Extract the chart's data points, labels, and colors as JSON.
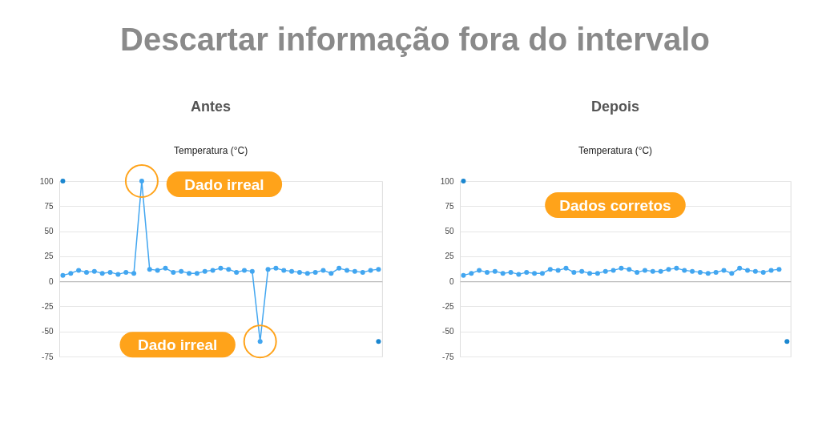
{
  "chart_data": [
    {
      "type": "other",
      "title": "Descartar informação fora do intervalo"
    },
    {
      "type": "line",
      "title": "Antes",
      "subtitle": "Temperatura (°C)",
      "categories": [
        null,
        null,
        null,
        null,
        null,
        null,
        null,
        null,
        null,
        null,
        null,
        null,
        null,
        null,
        null,
        null,
        null,
        null,
        null,
        null,
        null,
        null,
        null,
        null,
        null,
        null,
        null,
        null,
        null,
        null,
        null,
        null,
        null,
        null,
        null,
        null,
        null,
        null,
        null,
        null,
        null
      ],
      "series": [
        {
          "color": "#42a6f0",
          "values": [
            6,
            8,
            11,
            9,
            10,
            8,
            9,
            7,
            9,
            8,
            100,
            12,
            11,
            13,
            9,
            10,
            8,
            8,
            10,
            11,
            13,
            12,
            9,
            11,
            10,
            -60,
            12,
            13,
            11,
            10,
            9,
            8,
            9,
            11,
            8,
            13,
            11,
            10,
            9,
            11,
            12
          ]
        },
        {
          "type": "scatter",
          "color": "#1b87d0",
          "values": [
            100,
            null,
            null,
            null,
            null,
            null,
            null,
            null,
            null,
            null,
            null,
            null,
            null,
            null,
            null,
            null,
            null,
            null,
            null,
            null,
            null,
            null,
            null,
            null,
            null,
            null,
            null,
            null,
            null,
            null,
            null,
            null,
            null,
            null,
            null,
            null,
            null,
            null,
            null,
            null,
            -60
          ]
        }
      ],
      "ylim": [
        -75,
        100
      ],
      "yticks": [
        100,
        75,
        50,
        25,
        0,
        -25,
        -50,
        -75
      ],
      "grid": "y",
      "marker": "circle",
      "tick_labels": "y",
      "annotations": [
        "Dado irreal",
        "Dado irreal"
      ]
    },
    {
      "type": "line",
      "title": "Depois",
      "subtitle": "Temperatura (°C)",
      "categories": [
        null,
        null,
        null,
        null,
        null,
        null,
        null,
        null,
        null,
        null,
        null,
        null,
        null,
        null,
        null,
        null,
        null,
        null,
        null,
        null,
        null,
        null,
        null,
        null,
        null,
        null,
        null,
        null,
        null,
        null,
        null,
        null,
        null,
        null,
        null,
        null,
        null,
        null,
        null,
        null,
        null,
        null
      ],
      "series": [
        {
          "color": "#42a6f0",
          "values": [
            6,
            8,
            11,
            9,
            10,
            8,
            9,
            7,
            9,
            8,
            8,
            12,
            11,
            13,
            9,
            10,
            8,
            8,
            10,
            11,
            13,
            12,
            9,
            11,
            10,
            10,
            12,
            13,
            11,
            10,
            9,
            8,
            9,
            11,
            8,
            13,
            11,
            10,
            9,
            11,
            12,
            null
          ]
        },
        {
          "type": "scatter",
          "color": "#1b87d0",
          "values": [
            100,
            null,
            null,
            null,
            null,
            null,
            null,
            null,
            null,
            null,
            null,
            null,
            null,
            null,
            null,
            null,
            null,
            null,
            null,
            null,
            null,
            null,
            null,
            null,
            null,
            null,
            null,
            null,
            null,
            null,
            null,
            null,
            null,
            null,
            null,
            null,
            null,
            null,
            null,
            null,
            null,
            -60
          ]
        }
      ],
      "ylim": [
        -75,
        100
      ],
      "yticks": [
        100,
        75,
        50,
        25,
        0,
        -25,
        -50,
        -75
      ],
      "grid": "y",
      "marker": "circle",
      "tick_labels": "y",
      "annotations": [
        "Dados corretos"
      ]
    }
  ]
}
